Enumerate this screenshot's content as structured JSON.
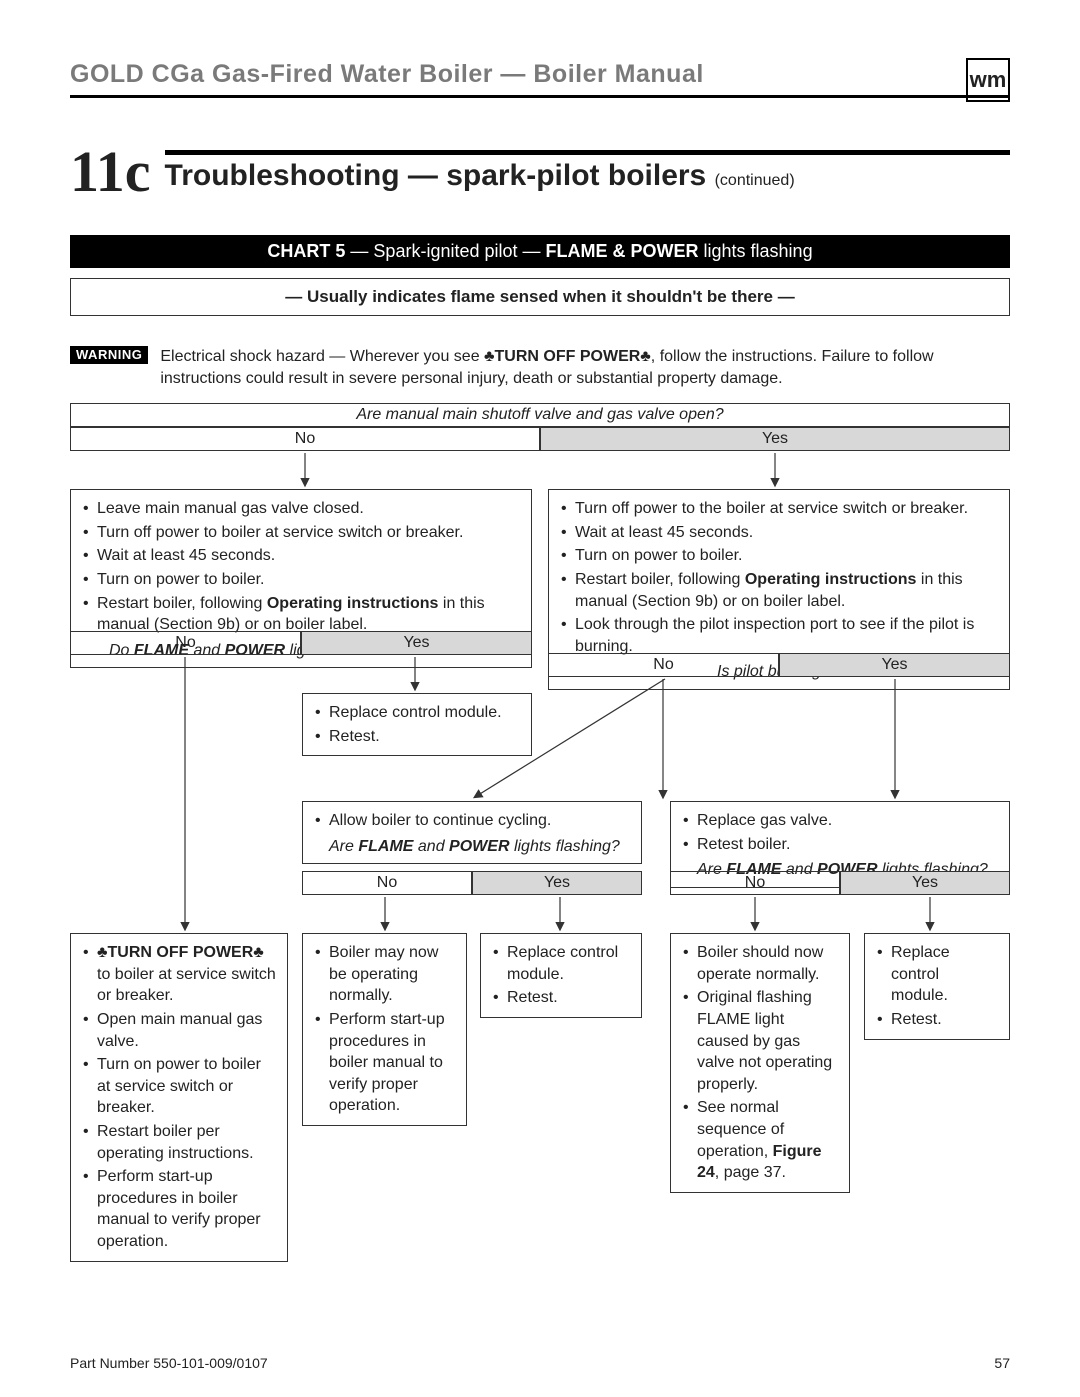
{
  "header": {
    "product_line": "GOLD CGa Gas-Fired Water Boiler — Boiler Manual",
    "logo_text": "wm"
  },
  "section": {
    "number": "11c",
    "title": "Troubleshooting — spark-pilot boilers",
    "continued": "(continued)"
  },
  "chart_bar": {
    "prefix": "CHART 5",
    "mid": " — Spark-ignited pilot — ",
    "strong": "FLAME & POWER",
    "tail": " lights flashing"
  },
  "note": "—  Usually indicates flame sensed when it shouldn't be there  —",
  "warning": {
    "badge": "WARNING",
    "text_pre": "Electrical shock hazard — Wherever you see ",
    "power_off": "♣TURN OFF POWER♣",
    "text_post": ", follow the instructions. Failure to follow instructions could result in severe personal injury, death or substantial property damage."
  },
  "flow": {
    "q1": "Are manual main shutoff valve and gas valve open?",
    "no": "No",
    "yes": "Yes",
    "left_box1": {
      "items": [
        "Leave main manual gas valve closed.",
        "Turn off power to boiler at service switch or breaker.",
        "Wait at least 45 seconds.",
        "Turn on power to boiler.",
        "Restart boiler, following <b>Operating instructions</b> in this manual (Section 9b) or on boiler label."
      ],
      "q": "Do <b>FLAME</b> and <b>POWER</b> lights still flash?"
    },
    "right_box1": {
      "items": [
        "Turn off power to the boiler at service switch or breaker.",
        "Wait at least 45 seconds.",
        "Turn on power to boiler.",
        "Restart boiler, following <b>Operating instructions</b> in this manual (Section 9b) or on boiler label.",
        "Look through the pilot inspection port to see if the pilot is burning."
      ],
      "q": "Is pilot burning?"
    },
    "left_yes_box": {
      "items": [
        "Replace control module.",
        "Retest."
      ]
    },
    "mid_box": {
      "items": [
        "Allow boiler to continue cycling."
      ],
      "q": "Are <b>FLAME</b> and <b>POWER</b> lights flashing?"
    },
    "right_mid_box": {
      "items": [
        "Replace gas valve.",
        "Retest boiler."
      ],
      "q": "Are <b>FLAME</b> and <b>POWER</b> lights flashing?"
    },
    "final_left": {
      "items": [
        "<b>♣TURN OFF POWER♣</b> to boiler at service switch or breaker.",
        "Open main manual gas valve.",
        "Turn on power to boiler at service switch or breaker.",
        "Restart boiler per operating instructions.",
        "Perform start-up procedures in boiler manual to verify proper operation."
      ]
    },
    "final_mid_no": {
      "items": [
        "Boiler may now be operating normally.",
        "Perform start-up procedures in boiler manual to verify proper operation."
      ]
    },
    "final_mid_yes": {
      "items": [
        "Replace control module.",
        "Retest."
      ]
    },
    "final_right_no": {
      "items": [
        "Boiler should now operate normally.",
        "Original flashing FLAME light caused by gas valve not operating properly.",
        "See normal sequence of operation, <b>Figure 24</b>, page 37."
      ]
    },
    "final_right_yes": {
      "items": [
        "Replace control module.",
        "Retest."
      ]
    }
  },
  "footer": {
    "part": "Part Number 550-101-009/0107",
    "page": "57"
  },
  "colors": {
    "gray_header": "#7a7a7a",
    "yn_gray": "#d8d8d8",
    "rule": "#000000",
    "text": "#222222"
  }
}
